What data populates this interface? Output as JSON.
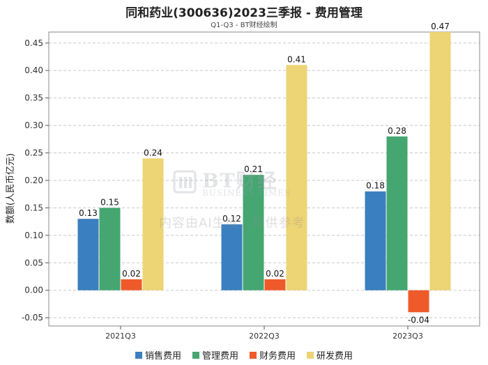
{
  "chart_data": {
    "type": "bar",
    "title": "同和药业(300636)2023三季报 - 费用管理",
    "subtitle": "Q1-Q3 - BT财经绘制",
    "xlabel": "",
    "ylabel": "数额(人民币亿元)",
    "categories": [
      "2021Q3",
      "2022Q3",
      "2023Q3"
    ],
    "ylim": [
      -0.065,
      0.47
    ],
    "yticks": [
      -0.05,
      0.0,
      0.05,
      0.1,
      0.15,
      0.2,
      0.25,
      0.3,
      0.35,
      0.4,
      0.45
    ],
    "ytick_labels": [
      "-0.05",
      "0.00",
      "0.05",
      "0.10",
      "0.15",
      "0.20",
      "0.25",
      "0.30",
      "0.35",
      "0.40",
      "0.45"
    ],
    "grid": true,
    "legend_position": "bottom-center",
    "series": [
      {
        "name": "销售费用",
        "color": "#3a7fbf",
        "values": [
          0.13,
          0.12,
          0.18
        ],
        "labels": [
          "0.13",
          "0.12",
          "0.18"
        ]
      },
      {
        "name": "管理费用",
        "color": "#45a672",
        "values": [
          0.15,
          0.21,
          0.28
        ],
        "labels": [
          "0.15",
          "0.21",
          "0.28"
        ]
      },
      {
        "name": "财务费用",
        "color": "#ef5a2a",
        "values": [
          0.02,
          0.02,
          -0.04
        ],
        "labels": [
          "0.02",
          "0.02",
          "-0.04"
        ]
      },
      {
        "name": "研发费用",
        "color": "#edd474",
        "values": [
          0.24,
          0.41,
          0.47
        ],
        "labels": [
          "0.24",
          "0.41",
          "0.47"
        ]
      }
    ]
  },
  "watermark": {
    "brand": "BT财经",
    "sub": "BUSINESS TIMES",
    "note": "内容由AI生成，仅供参考"
  }
}
